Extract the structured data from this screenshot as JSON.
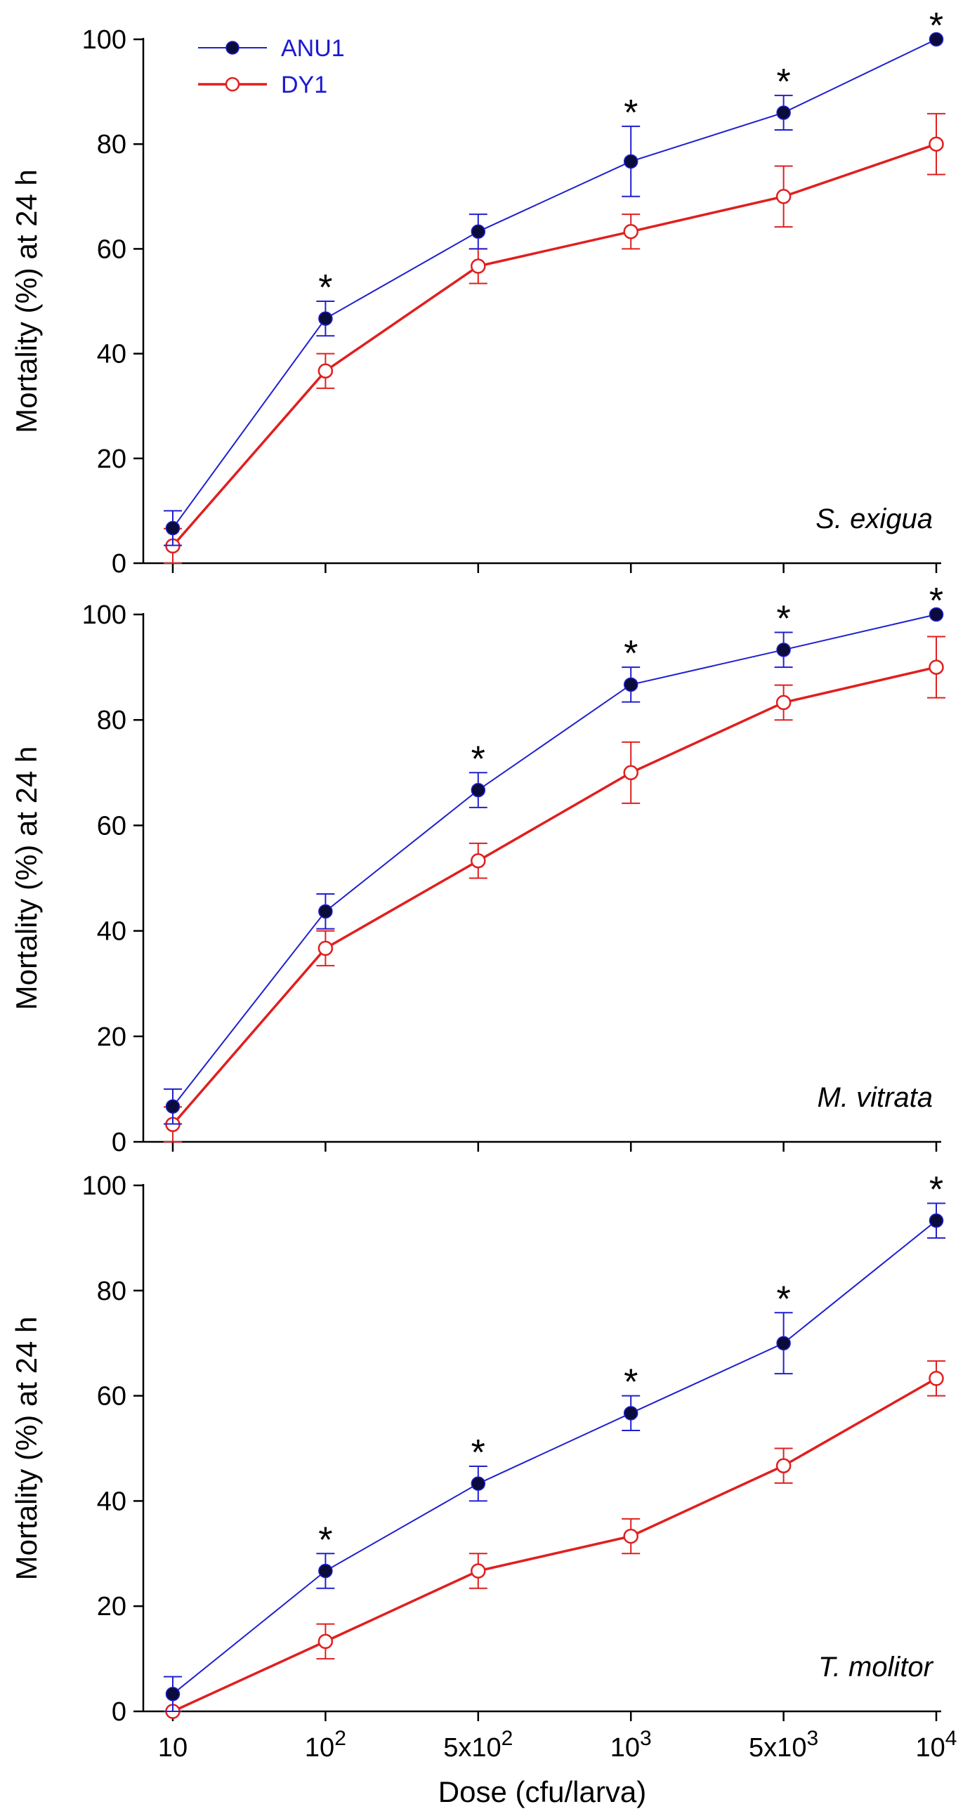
{
  "colors": {
    "ANU1_line": "#2020d0",
    "ANU1_marker": "#0b0b3c",
    "DY1": "#e01f1f",
    "legend_text": "#1a1ad0",
    "axis": "#000000"
  },
  "legend": [
    {
      "label": "ANU1",
      "marker": "filled-circle"
    },
    {
      "label": "DY1",
      "marker": "open-circle"
    }
  ],
  "xaxis": {
    "title": "Dose (cfu/larva)",
    "ticks": [
      {
        "base": "10",
        "exp": ""
      },
      {
        "base": "10",
        "exp": "2"
      },
      {
        "base": "5x10",
        "exp": "2"
      },
      {
        "base": "10",
        "exp": "3"
      },
      {
        "base": "5x10",
        "exp": "3"
      },
      {
        "base": "10",
        "exp": "4"
      }
    ]
  },
  "chart_data": [
    {
      "type": "line",
      "title": "S. exigua",
      "xlabel": "Dose (cfu/larva)",
      "ylabel": "Mortality (%) at 24 h",
      "ylim": [
        0,
        100
      ],
      "yticks": [
        "0",
        "20",
        "40",
        "60",
        "80",
        "100"
      ],
      "categories": [
        "10",
        "10^2",
        "5x10^2",
        "10^3",
        "5x10^3",
        "10^4"
      ],
      "series": [
        {
          "name": "ANU1",
          "values": [
            6.7,
            46.7,
            63.3,
            76.7,
            86.0,
            100
          ],
          "errors": [
            3.3,
            3.3,
            3.3,
            6.7,
            3.3,
            0
          ]
        },
        {
          "name": "DY1",
          "values": [
            3.3,
            36.7,
            56.7,
            63.3,
            70.0,
            80.0
          ],
          "errors": [
            3.3,
            3.3,
            3.3,
            3.3,
            5.8,
            5.8
          ]
        }
      ],
      "significant": [
        false,
        true,
        false,
        true,
        true,
        true
      ]
    },
    {
      "type": "line",
      "title": "M. vitrata",
      "xlabel": "Dose (cfu/larva)",
      "ylabel": "Mortality (%) at 24 h",
      "ylim": [
        0,
        100
      ],
      "yticks": [
        "0",
        "20",
        "40",
        "60",
        "80",
        "100"
      ],
      "categories": [
        "10",
        "10^2",
        "5x10^2",
        "10^3",
        "5x10^3",
        "10^4"
      ],
      "series": [
        {
          "name": "ANU1",
          "values": [
            6.7,
            43.7,
            66.7,
            86.7,
            93.3,
            100
          ],
          "errors": [
            3.3,
            3.3,
            3.3,
            3.3,
            3.3,
            0
          ]
        },
        {
          "name": "DY1",
          "values": [
            3.3,
            36.7,
            53.3,
            70.0,
            83.3,
            90.0
          ],
          "errors": [
            3.3,
            3.3,
            3.3,
            5.8,
            3.3,
            5.8
          ]
        }
      ],
      "significant": [
        false,
        false,
        true,
        true,
        true,
        true
      ]
    },
    {
      "type": "line",
      "title": "T. molitor",
      "xlabel": "Dose (cfu/larva)",
      "ylabel": "Mortality (%) at 24 h",
      "ylim": [
        0,
        100
      ],
      "yticks": [
        "0",
        "20",
        "40",
        "60",
        "80",
        "100"
      ],
      "categories": [
        "10",
        "10^2",
        "5x10^2",
        "10^3",
        "5x10^3",
        "10^4"
      ],
      "series": [
        {
          "name": "ANU1",
          "values": [
            3.3,
            26.7,
            43.3,
            56.7,
            70.0,
            93.3
          ],
          "errors": [
            3.3,
            3.3,
            3.3,
            3.3,
            5.8,
            3.3
          ]
        },
        {
          "name": "DY1",
          "values": [
            0,
            13.3,
            26.7,
            33.3,
            46.7,
            63.3
          ],
          "errors": [
            0,
            3.3,
            3.3,
            3.3,
            3.3,
            3.3
          ]
        }
      ],
      "significant": [
        false,
        true,
        true,
        true,
        true,
        true
      ]
    }
  ]
}
